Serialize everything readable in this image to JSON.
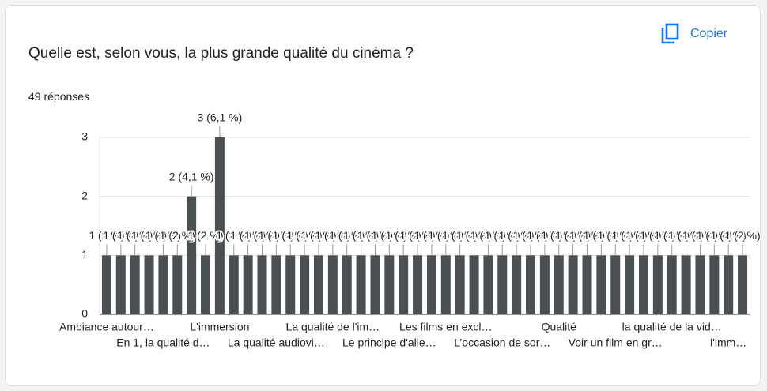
{
  "question": "Quelle est, selon vous, la plus grande qualité du cinéma ?",
  "responses": "49 réponses",
  "copy_button": "Copier",
  "chart_data": {
    "type": "bar",
    "color": "#4a4f52",
    "categories": [
      "Ambiance autour…",
      null,
      null,
      null,
      "En 1, la qualité d…",
      null,
      null,
      null,
      "L'immersion",
      null,
      null,
      null,
      "La qualité audiovi…",
      null,
      null,
      null,
      "La qualité de l'im…",
      null,
      null,
      null,
      "Le principe d'alle…",
      null,
      null,
      null,
      "Les films en excl…",
      null,
      null,
      null,
      "L’occasion de sor…",
      null,
      null,
      null,
      "Qualité",
      null,
      null,
      null,
      "Voir un film en gr…",
      null,
      null,
      null,
      "la qualité de la vid…",
      null,
      null,
      null,
      "l'imm…",
      null
    ],
    "values": [
      1,
      1,
      1,
      1,
      1,
      1,
      2,
      1,
      3,
      1,
      1,
      1,
      1,
      1,
      1,
      1,
      1,
      1,
      1,
      1,
      1,
      1,
      1,
      1,
      1,
      1,
      1,
      1,
      1,
      1,
      1,
      1,
      1,
      1,
      1,
      1,
      1,
      1,
      1,
      1,
      1,
      1,
      1,
      1,
      1,
      1
    ],
    "value_labels": [
      "1 (2 %)",
      "1 (2 %)",
      "1 (2 %)",
      "1 (2 %)",
      "1 (2 %)",
      "1 (2 %)",
      "2 (4,1 %)",
      "1 (2 %)",
      "3 (6,1 %)",
      "1 (2 %)",
      "1 (2 %)",
      "1 (2 %)",
      "1 (2 %)",
      "1 (2 %)",
      "1 (2 %)",
      "1 (2 %)",
      "1 (2 %)",
      "1 (2 %)",
      "1 (2 %)",
      "1 (2 %)",
      "1 (2 %)",
      "1 (2 %)",
      "1 (2 %)",
      "1 (2 %)",
      "1 (2 %)",
      "1 (2 %)",
      "1 (2 %)",
      "1 (2 %)",
      "1 (2 %)",
      "1 (2 %)",
      "1 (2 %)",
      "1 (2 %)",
      "1 (2 %)",
      "1 (2 %)",
      "1 (2 %)",
      "1 (2 %)",
      "1 (2 %)",
      "1 (2 %)",
      "1 (2 %)",
      "1 (2 %)",
      "1 (2 %)",
      "1 (2 %)",
      "1 (2 %)",
      "1 (2 %)",
      "1 (2 %)",
      "1 (2 %)"
    ],
    "ylim": [
      0,
      3
    ],
    "yticks": [
      0,
      1,
      2,
      3
    ],
    "grid": true
  }
}
